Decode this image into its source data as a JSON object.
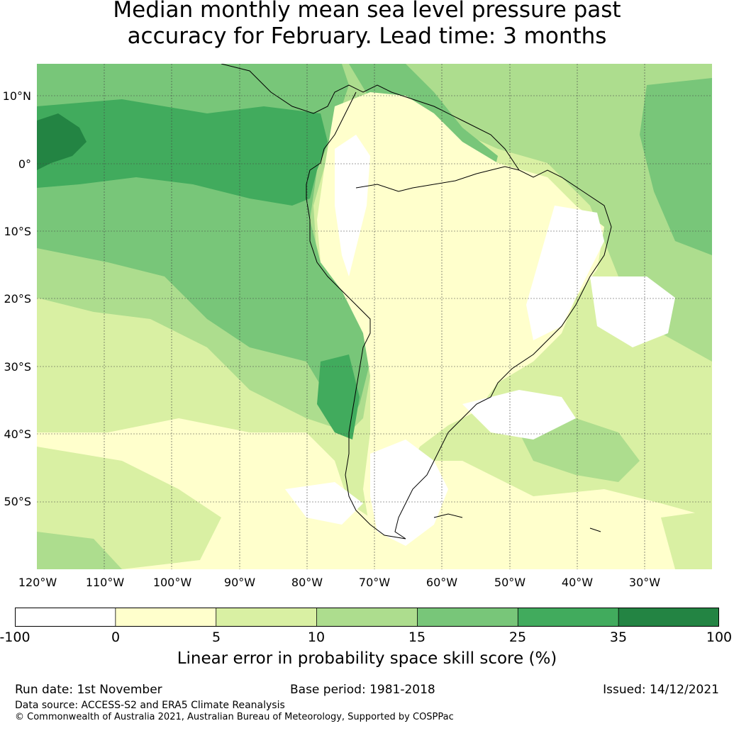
{
  "title": {
    "line1": "Median monthly mean sea level pressure past",
    "line2": "accuracy for February. Lead time: 3 months"
  },
  "map": {
    "lat_labels": [
      "10°N",
      "0°",
      "10°S",
      "20°S",
      "30°S",
      "40°S",
      "50°S"
    ],
    "lon_labels": [
      "120°W",
      "110°W",
      "100°W",
      "90°W",
      "80°W",
      "70°W",
      "60°W",
      "50°W",
      "40°W",
      "30°W"
    ]
  },
  "colorbar": {
    "tick_labels": [
      "-100",
      "0",
      "5",
      "10",
      "15",
      "25",
      "35",
      "100"
    ],
    "colors": [
      "#ffffff",
      "#ffffcc",
      "#d9f0a3",
      "#addd8e",
      "#78c679",
      "#41ab5d",
      "#238443"
    ],
    "label": "Linear error in probability space skill score (%)"
  },
  "footer": {
    "run_date": "Run date: 1st November",
    "base_period": "Base period: 1981-2018",
    "issued": "Issued: 14/12/2021",
    "data_source": "Data source: ACCESS-S2 and ERA5 Climate Reanalysis",
    "copyright": "© Commonwealth of Australia 2021, Australian Bureau of Meteorology, Supported by COSPPac"
  }
}
